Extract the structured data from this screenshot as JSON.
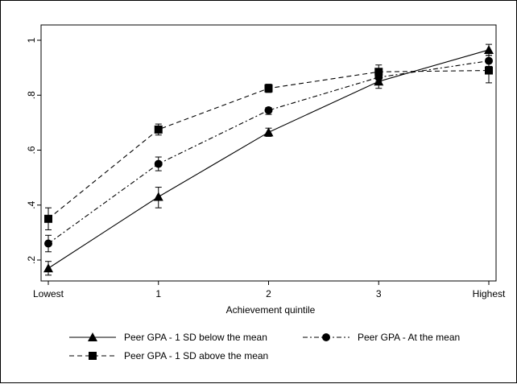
{
  "chart_data": {
    "type": "line",
    "title": "",
    "xlabel": "Achievement quintile",
    "ylabel": "",
    "categories": [
      "Lowest",
      "1",
      "2",
      "3",
      "Highest"
    ],
    "ylim": [
      0.15,
      1.05
    ],
    "yticks": [
      ".2",
      ".4",
      ".6",
      ".8",
      "1"
    ],
    "ytick_values": [
      0.2,
      0.4,
      0.6,
      0.8,
      1.0
    ],
    "grid": false,
    "legend_position": "bottom",
    "series": [
      {
        "name": "Peer GPA - 1 SD below the mean",
        "marker": "triangle",
        "dash": "solid",
        "values": [
          0.17,
          0.43,
          0.665,
          0.85,
          0.965
        ],
        "ci_low": [
          0.145,
          0.39,
          0.65,
          0.825,
          0.945
        ],
        "ci_high": [
          0.195,
          0.465,
          0.68,
          0.875,
          0.985
        ]
      },
      {
        "name": "Peer GPA - At the mean",
        "marker": "circle",
        "dash": "dashdot",
        "values": [
          0.26,
          0.55,
          0.745,
          0.865,
          0.925
        ],
        "ci_low": [
          0.23,
          0.525,
          0.73,
          0.85,
          0.905
        ],
        "ci_high": [
          0.29,
          0.575,
          0.755,
          0.88,
          0.945
        ]
      },
      {
        "name": "Peer GPA - 1 SD above the mean",
        "marker": "square",
        "dash": "dashed",
        "values": [
          0.35,
          0.675,
          0.825,
          0.885,
          0.89
        ],
        "ci_low": [
          0.31,
          0.655,
          0.81,
          0.86,
          0.845
        ],
        "ci_high": [
          0.39,
          0.695,
          0.84,
          0.91,
          0.925
        ]
      }
    ]
  }
}
